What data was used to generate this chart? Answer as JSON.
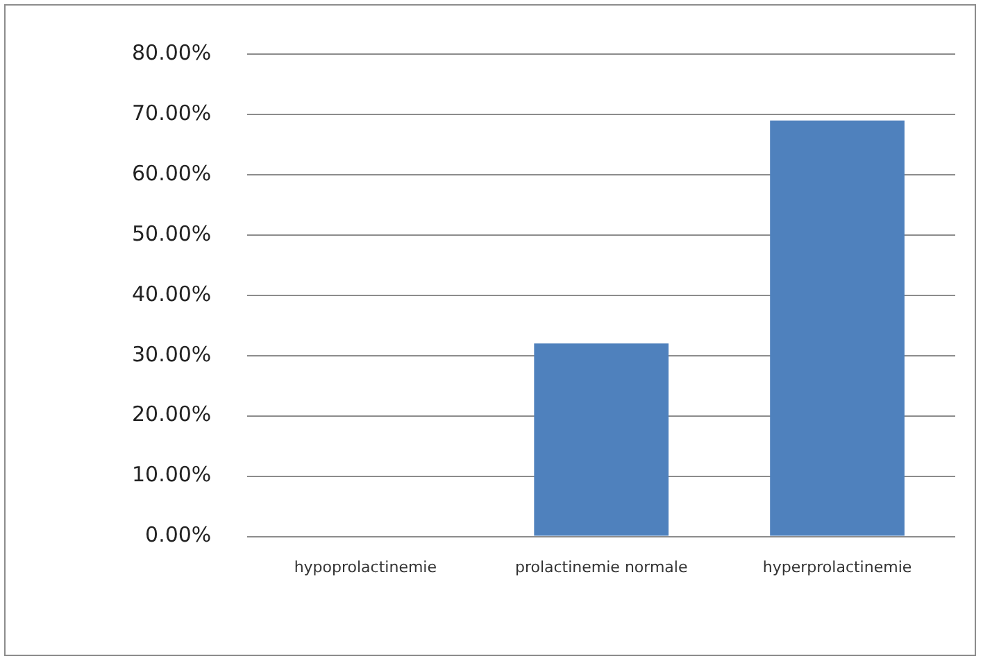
{
  "chart_data": {
    "type": "bar",
    "categories": [
      "hypoprolactinemie",
      "prolactinemie normale",
      "hyperprolactinemie"
    ],
    "values": [
      0,
      32,
      69
    ],
    "color": "#4f81bd",
    "ylim": [
      0,
      80
    ],
    "yticks": [
      {
        "value": 0,
        "label": "0.00%"
      },
      {
        "value": 10,
        "label": "10.00%"
      },
      {
        "value": 20,
        "label": "20.00%"
      },
      {
        "value": 30,
        "label": "30.00%"
      },
      {
        "value": 40,
        "label": "40.00%"
      },
      {
        "value": 50,
        "label": "50.00%"
      },
      {
        "value": 60,
        "label": "60.00%"
      },
      {
        "value": 70,
        "label": "70.00%"
      },
      {
        "value": 80,
        "label": "80.00%"
      }
    ],
    "grid": "y",
    "legend": false
  }
}
